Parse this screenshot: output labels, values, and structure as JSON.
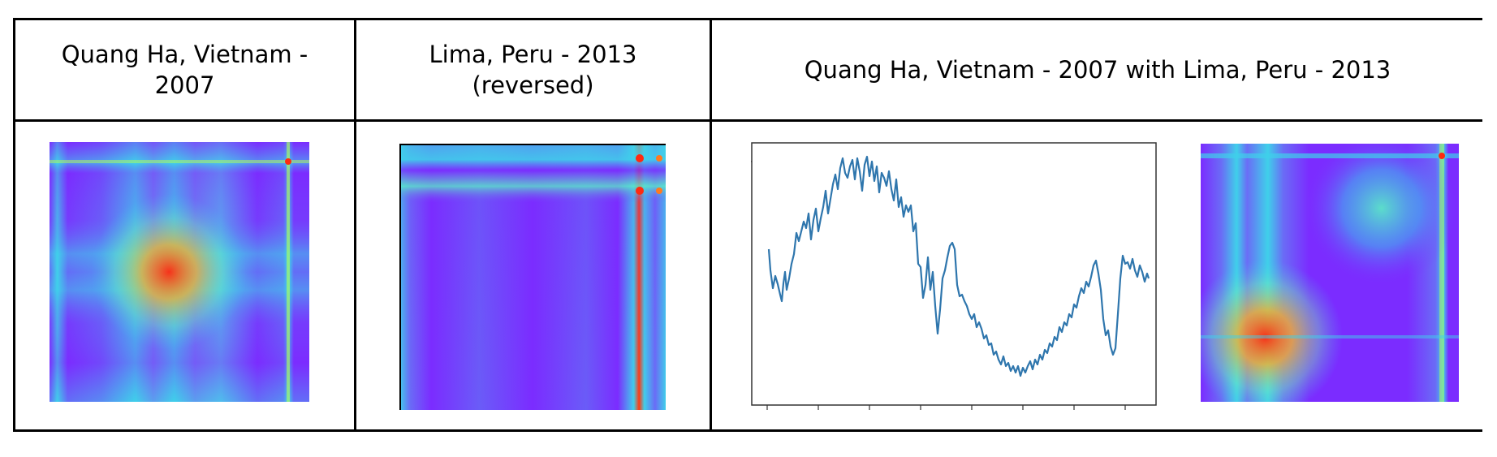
{
  "table": {
    "headers": [
      "Quang Ha, Vietnam - 2007",
      "Lima, Peru - 2013 (reversed)",
      "Quang Ha, Vietnam - 2007 with Lima, Peru - 2013"
    ],
    "images": [
      {
        "name": "heatmap-quangha",
        "kind": "recurrence-heatmap"
      },
      {
        "name": "heatmap-lima-reversed",
        "kind": "recurrence-heatmap"
      },
      {
        "name": "line-plot-combined",
        "kind": "time-series-line"
      },
      {
        "name": "heatmap-combined",
        "kind": "recurrence-heatmap"
      }
    ]
  },
  "colors": {
    "heatmap_low": "#7a2cff",
    "heatmap_mid": "#3fd0ea",
    "heatmap_high": "#ff2a10",
    "line": "#2f76ad"
  }
}
